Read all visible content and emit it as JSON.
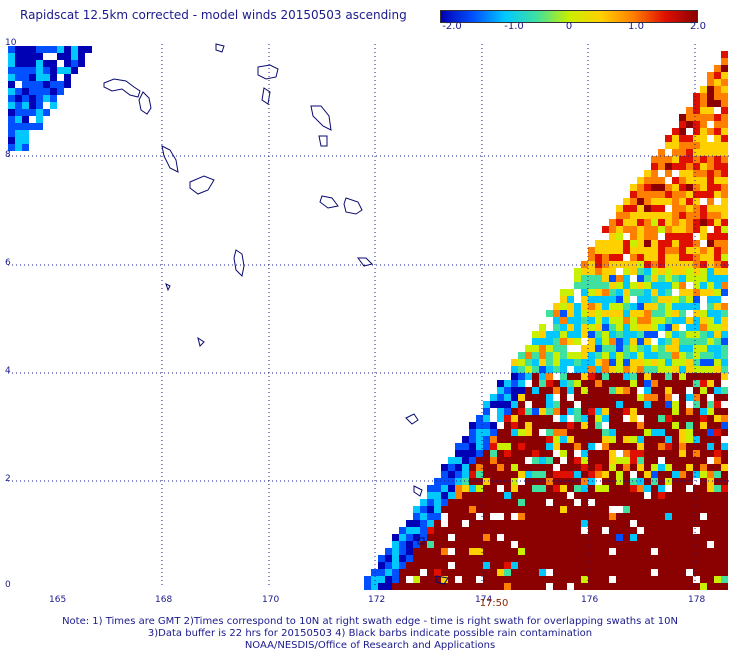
{
  "title": "Rapidscat 12.5km corrected - model winds 20150503 ascending",
  "colorbar": {
    "ticks": [
      "-2.0",
      "-1.0",
      "0",
      "1.0",
      "2.0"
    ],
    "range": [
      -2.0,
      2.0
    ],
    "colors": [
      "#0000b4",
      "#0050ff",
      "#00c8ff",
      "#40e0a0",
      "#c8f000",
      "#ffd000",
      "#ff8000",
      "#e01000",
      "#8b0000"
    ]
  },
  "map": {
    "lon_labels": [
      "165",
      "168",
      "170",
      "172",
      "174",
      "176",
      "178"
    ],
    "lat_labels": [
      "10",
      "8",
      "6",
      "4",
      "2",
      "0"
    ],
    "time_label": "17:50",
    "grid": "dotted",
    "no_data_color": "#ffffff",
    "coast_color": "#0a0a70"
  },
  "footer": {
    "line1": "Note: 1) Times are GMT 2)Times correspond to 10N at right swath edge - time is right swath for overlapping swaths at 10N",
    "line2": "3)Data buffer is 22 hrs for 20150503 4) Black barbs indicate possible rain contamination",
    "line3": "NOAA/NESDIS/Office of Research and Applications"
  }
}
